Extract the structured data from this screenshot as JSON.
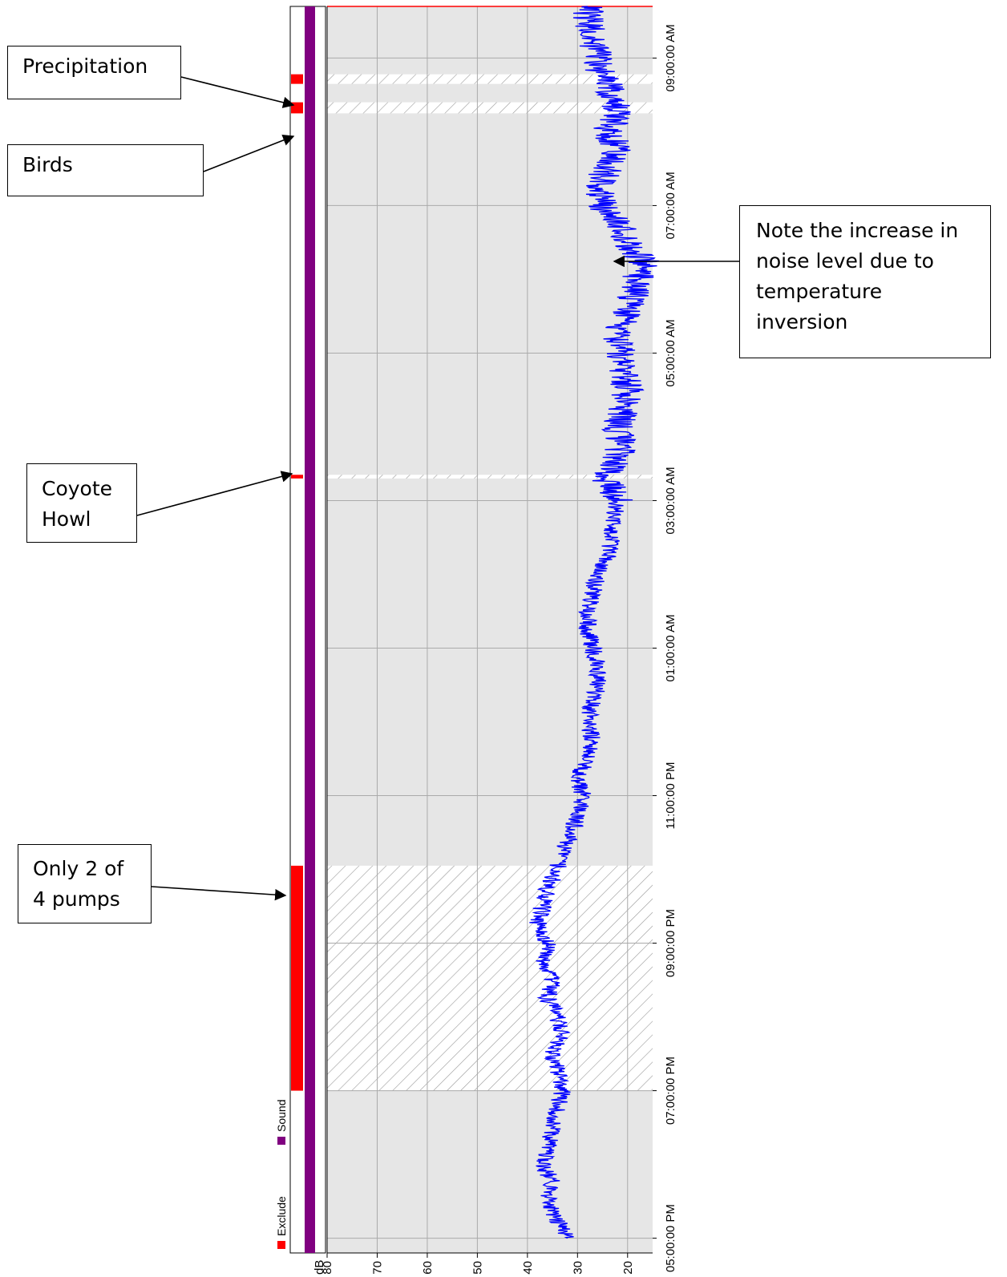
{
  "callouts": {
    "precipitation": "Precipitation",
    "birds": "Birds",
    "coyote_line1": "Coyote",
    "coyote_line2": "Howl",
    "pumps_line1": "Only 2 of",
    "pumps_line2": "4 pumps",
    "inversion_line1": "Note the increase in",
    "inversion_line2": "noise level due to",
    "inversion_line3": "temperature",
    "inversion_line4": "inversion"
  },
  "legend": {
    "exclude_label": "Exclude",
    "sound_label": "Sound"
  },
  "colors": {
    "sound": "#800080",
    "exclude": "#ff0000",
    "trace": "#0000ff",
    "plot_background": "#e6e6e6",
    "grid": "#aaaaaa"
  },
  "chart_data": {
    "type": "line",
    "orientation": "rotated 90° (time runs bottom to top, dB decreases left to right)",
    "ylabel": "dB",
    "ylim": [
      80,
      15
    ],
    "y_ticks": [
      80,
      70,
      60,
      50,
      40,
      30,
      20
    ],
    "x_range_hours": [
      16.8,
      33.7
    ],
    "x_ticks": [
      {
        "hour": 17,
        "label": "05:00:00 PM"
      },
      {
        "hour": 19,
        "label": "07:00:00 PM"
      },
      {
        "hour": 21,
        "label": "09:00:00 PM"
      },
      {
        "hour": 23,
        "label": "11:00:00 PM"
      },
      {
        "hour": 25,
        "label": "01:00:00 AM"
      },
      {
        "hour": 27,
        "label": "03:00:00 AM"
      },
      {
        "hour": 29,
        "label": "05:00:00 AM"
      },
      {
        "hour": 31,
        "label": "07:00:00 AM"
      },
      {
        "hour": 33,
        "label": "09:00:00 AM"
      }
    ],
    "excluded_periods": [
      {
        "start": 19.0,
        "end": 22.05
      },
      {
        "start": 27.3,
        "end": 27.35
      },
      {
        "start": 32.25,
        "end": 32.4
      },
      {
        "start": 32.65,
        "end": 32.78
      }
    ],
    "series": [
      {
        "name": "Sound",
        "x": [
          17.0,
          17.25,
          17.5,
          17.75,
          18.0,
          18.25,
          18.5,
          18.75,
          19.0,
          19.25,
          19.5,
          19.75,
          20.0,
          20.25,
          20.5,
          20.75,
          21.0,
          21.25,
          21.5,
          21.75,
          22.0,
          22.25,
          22.5,
          22.75,
          23.0,
          23.25,
          23.5,
          23.75,
          24.0,
          24.25,
          24.5,
          24.75,
          25.0,
          25.25,
          25.5,
          25.75,
          26.0,
          26.25,
          26.5,
          26.75,
          27.0,
          27.25,
          27.5,
          27.75,
          28.0,
          28.25,
          28.5,
          28.75,
          29.0,
          29.25,
          29.5,
          29.75,
          30.0,
          30.25,
          30.5,
          30.75,
          31.0,
          31.25,
          31.5,
          31.75,
          32.0,
          32.25,
          32.5,
          32.75,
          33.0,
          33.25,
          33.5,
          33.7
        ],
        "values": [
          32,
          34,
          36,
          35,
          37,
          36,
          35,
          34,
          33,
          34,
          35,
          33,
          34,
          36,
          35,
          37,
          36,
          38,
          37,
          36,
          34,
          33,
          31,
          30,
          29,
          30,
          28,
          27,
          28,
          27,
          26,
          26,
          27,
          28,
          28,
          27,
          26,
          24,
          23,
          23,
          22,
          24,
          23,
          21,
          22,
          21,
          20,
          21,
          21,
          22,
          20,
          19,
          18,
          17,
          20,
          22,
          25,
          26,
          24,
          22,
          24,
          22,
          23,
          25,
          26,
          27,
          28,
          28
        ]
      }
    ]
  }
}
